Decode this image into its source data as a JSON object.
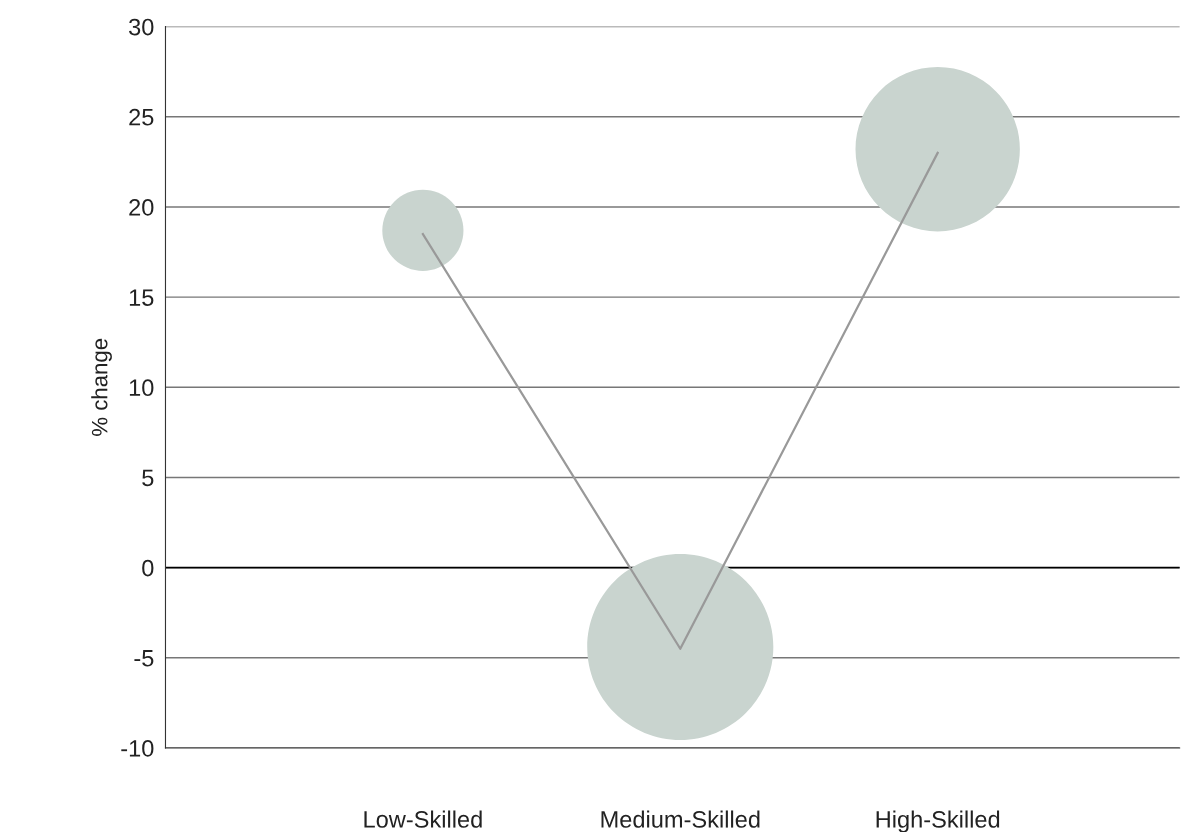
{
  "chart_data": {
    "type": "bubble",
    "ylabel": "% change",
    "categories": [
      "Low-Skilled",
      "Medium-Skilled",
      "High-Skilled"
    ],
    "series": [
      {
        "type": "bubble",
        "color": "#c9d4cf",
        "values": [
          18.7,
          -4.4,
          23.2
        ],
        "sizes": [
          0.19,
          1,
          0.78
        ]
      },
      {
        "type": "line",
        "color": "#999999",
        "values": [
          18.5,
          -4.5,
          23
        ]
      }
    ],
    "ylim": [
      -10,
      30
    ],
    "yticks": [
      -10,
      -5,
      0,
      5,
      10,
      15,
      20,
      25,
      30
    ],
    "grid": "y",
    "legend": false,
    "ref_lines": [
      {
        "axis": "y",
        "value": 0,
        "color": "#000000"
      }
    ]
  }
}
